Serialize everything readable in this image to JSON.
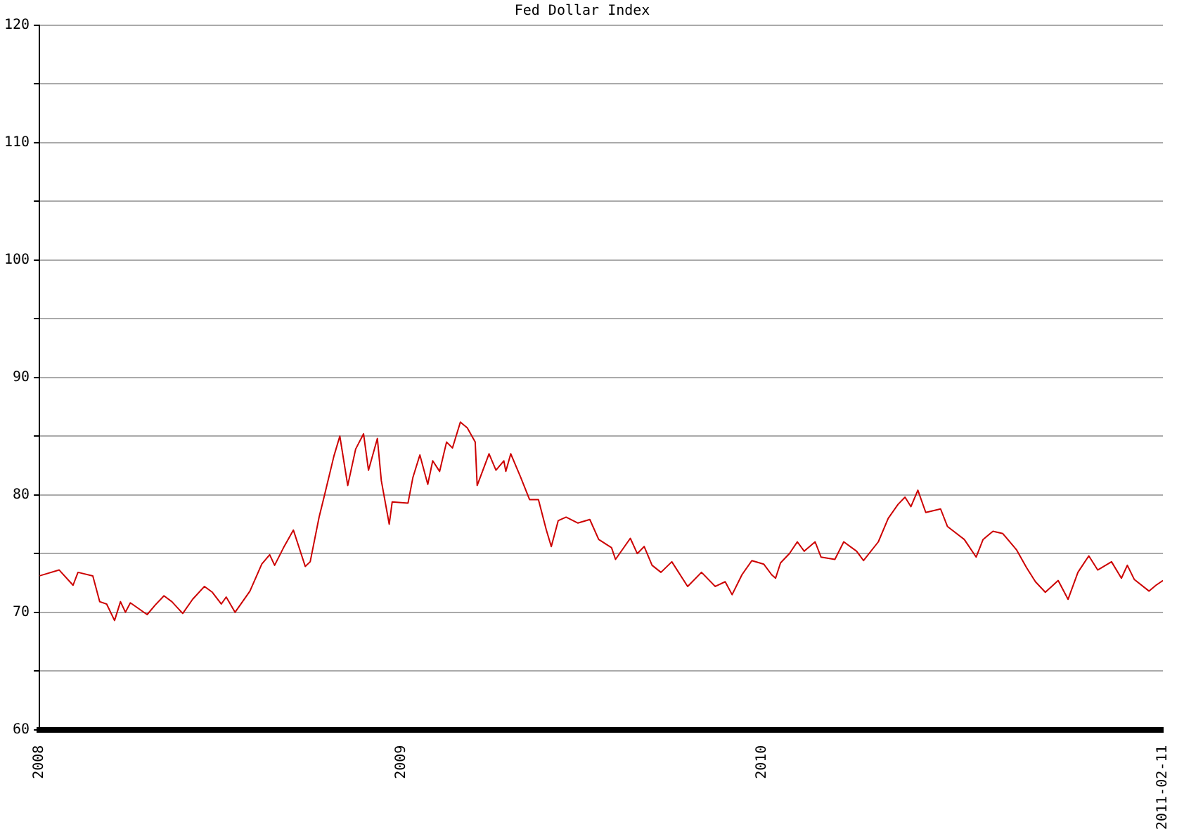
{
  "chart_data": {
    "type": "line",
    "title": "Fed Dollar Index",
    "x": [
      "2008-01-01",
      "2008-01-21",
      "2008-02-04",
      "2008-02-09",
      "2008-02-24",
      "2008-03-02",
      "2008-03-09",
      "2008-03-17",
      "2008-03-23",
      "2008-03-28",
      "2008-04-02",
      "2008-04-19",
      "2008-04-27",
      "2008-05-06",
      "2008-05-14",
      "2008-05-25",
      "2008-06-04",
      "2008-06-16",
      "2008-06-24",
      "2008-07-03",
      "2008-07-08",
      "2008-07-17",
      "2008-08-01",
      "2008-08-13",
      "2008-08-21",
      "2008-08-26",
      "2008-09-04",
      "2008-09-14",
      "2008-09-26",
      "2008-10-01",
      "2008-10-10",
      "2008-10-15",
      "2008-10-25",
      "2008-10-31",
      "2008-11-08",
      "2008-11-16",
      "2008-11-24",
      "2008-11-29",
      "2008-12-08",
      "2008-12-12",
      "2008-12-20",
      "2008-12-23",
      "2009-01-08",
      "2009-01-13",
      "2009-01-20",
      "2009-01-28",
      "2009-02-02",
      "2009-02-09",
      "2009-02-16",
      "2009-02-22",
      "2009-03-02",
      "2009-03-09",
      "2009-03-17",
      "2009-03-19",
      "2009-03-31",
      "2009-04-07",
      "2009-04-15",
      "2009-04-17",
      "2009-04-22",
      "2009-05-02",
      "2009-05-11",
      "2009-05-20",
      "2009-05-28",
      "2009-06-02",
      "2009-06-09",
      "2009-06-17",
      "2009-06-29",
      "2009-07-11",
      "2009-07-20",
      "2009-08-02",
      "2009-08-06",
      "2009-08-21",
      "2009-08-28",
      "2009-09-04",
      "2009-09-12",
      "2009-09-21",
      "2009-10-02",
      "2009-10-18",
      "2009-11-01",
      "2009-11-15",
      "2009-11-25",
      "2009-12-02",
      "2009-12-12",
      "2009-12-22",
      "2010-01-03",
      "2010-01-11",
      "2010-01-15",
      "2010-01-20",
      "2010-01-29",
      "2010-02-06",
      "2010-02-13",
      "2010-02-24",
      "2010-03-02",
      "2010-03-16",
      "2010-03-25",
      "2010-04-07",
      "2010-04-14",
      "2010-04-29",
      "2010-05-09",
      "2010-05-19",
      "2010-05-26",
      "2010-06-01",
      "2010-06-08",
      "2010-06-16",
      "2010-07-01",
      "2010-07-08",
      "2010-07-25",
      "2010-08-06",
      "2010-08-13",
      "2010-08-23",
      "2010-09-02",
      "2010-09-16",
      "2010-09-26",
      "2010-10-05",
      "2010-10-15",
      "2010-10-28",
      "2010-11-07",
      "2010-11-17",
      "2010-11-28",
      "2010-12-07",
      "2010-12-21",
      "2010-12-31",
      "2011-01-06",
      "2011-01-13",
      "2011-01-28",
      "2011-02-04",
      "2011-02-11"
    ],
    "series": [
      {
        "color": "#cc0000",
        "values": [
          73.1,
          73.6,
          72.3,
          73.4,
          73.1,
          70.9,
          70.7,
          69.3,
          70.9,
          70.0,
          70.8,
          69.8,
          70.6,
          71.4,
          70.9,
          69.9,
          71.1,
          72.2,
          71.7,
          70.7,
          71.3,
          70.0,
          71.8,
          74.1,
          74.9,
          74.0,
          75.5,
          77.0,
          73.9,
          74.3,
          78.1,
          79.8,
          83.3,
          85.0,
          80.8,
          83.9,
          85.2,
          82.1,
          84.8,
          81.2,
          77.5,
          79.4,
          79.3,
          81.5,
          83.4,
          80.9,
          82.9,
          82.0,
          84.5,
          84.0,
          86.2,
          85.7,
          84.5,
          80.8,
          83.5,
          82.1,
          82.9,
          82.0,
          83.5,
          81.5,
          79.6,
          79.6,
          77.0,
          75.6,
          77.8,
          78.1,
          77.6,
          77.9,
          76.2,
          75.5,
          74.5,
          76.3,
          75.0,
          75.6,
          74.0,
          73.4,
          74.3,
          72.2,
          73.4,
          72.2,
          72.6,
          71.5,
          73.2,
          74.4,
          74.1,
          73.2,
          72.9,
          74.2,
          75.0,
          76.0,
          75.2,
          76.0,
          74.7,
          74.5,
          76.0,
          75.2,
          74.4,
          76.0,
          78.0,
          79.2,
          79.8,
          79.0,
          80.4,
          78.5,
          78.8,
          77.3,
          76.2,
          74.7,
          76.2,
          76.9,
          76.7,
          75.3,
          73.8,
          72.6,
          71.7,
          72.7,
          71.1,
          73.4,
          74.8,
          73.6,
          74.3,
          72.9,
          74.0,
          72.8,
          71.8,
          72.3,
          72.7
        ]
      }
    ],
    "xlim": [
      "2008",
      "2011-02-11"
    ],
    "xticks": [
      "2008",
      "2009",
      "2010",
      "2011-02-11"
    ],
    "ylim": [
      60,
      120
    ],
    "yticks": [
      60,
      {
        "value": 65,
        "label": null
      },
      70,
      {
        "value": 75,
        "label": null
      },
      80,
      {
        "value": 85,
        "label": null
      },
      90,
      {
        "value": 95,
        "label": null
      },
      100,
      {
        "value": 105,
        "label": null
      },
      110,
      {
        "value": 115,
        "label": null
      },
      120
    ],
    "grid": "y",
    "legend": false,
    "marker": "none",
    "line_style": "solid"
  }
}
